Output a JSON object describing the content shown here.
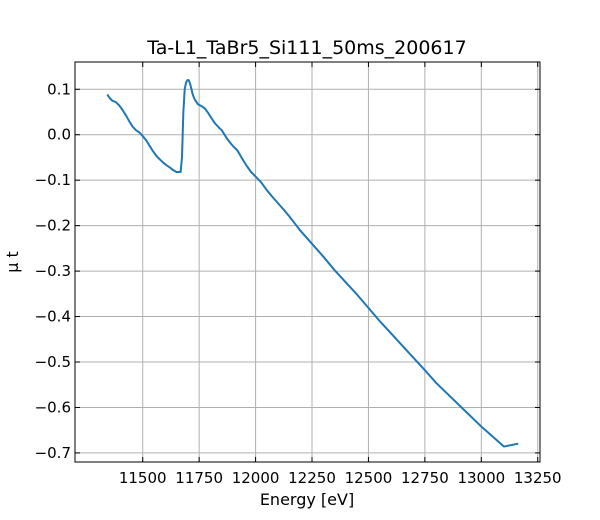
{
  "chart_data": {
    "type": "line",
    "title": "Ta-L1_TaBr5_Si111_50ms_200617",
    "xlabel": "Energy [eV]",
    "ylabel": "μ t",
    "xlim": [
      11200,
      13260
    ],
    "ylim": [
      -0.72,
      0.16
    ],
    "x_ticks": [
      11500,
      11750,
      12000,
      12250,
      12500,
      12750,
      13000,
      13250
    ],
    "y_ticks": [
      0.1,
      0.0,
      -0.1,
      -0.2,
      -0.3,
      -0.4,
      -0.5,
      -0.6,
      -0.7
    ],
    "grid": true,
    "series": [
      {
        "color": "#1f77b4",
        "x": [
          11345,
          11355,
          11365,
          11380,
          11395,
          11410,
          11425,
          11440,
          11455,
          11470,
          11485,
          11500,
          11515,
          11530,
          11545,
          11560,
          11575,
          11590,
          11605,
          11620,
          11635,
          11650,
          11660,
          11668,
          11674,
          11680,
          11686,
          11692,
          11698,
          11704,
          11710,
          11716,
          11722,
          11730,
          11745,
          11760,
          11775,
          11790,
          11805,
          11820,
          11835,
          11850,
          11865,
          11880,
          11900,
          11920,
          11940,
          11960,
          11980,
          12000,
          12025,
          12050,
          12075,
          12100,
          12125,
          12150,
          12175,
          12200,
          12250,
          12300,
          12350,
          12400,
          12450,
          12500,
          12550,
          12600,
          12650,
          12700,
          12750,
          12800,
          12850,
          12900,
          12950,
          13000,
          13050,
          13100,
          13160
        ],
        "y": [
          0.087,
          0.08,
          0.075,
          0.072,
          0.065,
          0.055,
          0.043,
          0.03,
          0.018,
          0.01,
          0.005,
          -0.003,
          -0.012,
          -0.024,
          -0.036,
          -0.046,
          -0.054,
          -0.061,
          -0.067,
          -0.072,
          -0.078,
          -0.082,
          -0.082,
          -0.082,
          -0.05,
          0.05,
          0.1,
          0.115,
          0.12,
          0.12,
          0.112,
          0.1,
          0.088,
          0.078,
          0.067,
          0.063,
          0.058,
          0.048,
          0.036,
          0.025,
          0.017,
          0.01,
          -0.002,
          -0.013,
          -0.025,
          -0.035,
          -0.052,
          -0.068,
          -0.082,
          -0.092,
          -0.105,
          -0.122,
          -0.137,
          -0.151,
          -0.165,
          -0.18,
          -0.196,
          -0.212,
          -0.24,
          -0.268,
          -0.298,
          -0.325,
          -0.352,
          -0.381,
          -0.41,
          -0.437,
          -0.464,
          -0.491,
          -0.518,
          -0.546,
          -0.57,
          -0.594,
          -0.618,
          -0.642,
          -0.664,
          -0.686,
          -0.68
        ]
      }
    ]
  }
}
